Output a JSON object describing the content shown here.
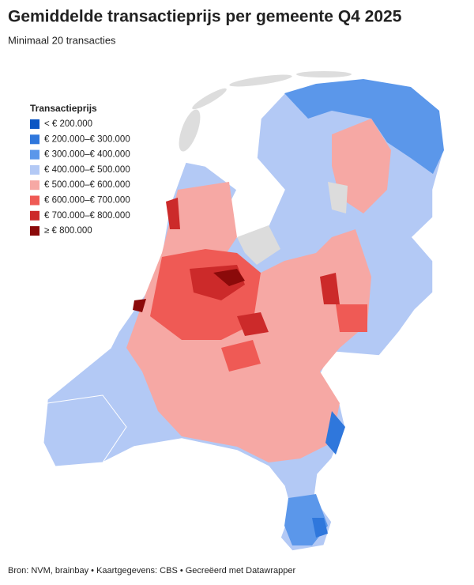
{
  "header": {
    "title": "Gemiddelde transactieprijs per gemeente Q4 2025",
    "subtitle": "Minimaal 20 transacties"
  },
  "legend": {
    "title": "Transactieprijs",
    "items": [
      {
        "label": "< € 200.000",
        "color": "#0b56c4"
      },
      {
        "label": "€ 200.000–€ 300.000",
        "color": "#2f77dc"
      },
      {
        "label": "€ 300.000–€ 400.000",
        "color": "#5b97ea"
      },
      {
        "label": "€ 400.000–€ 500.000",
        "color": "#b3c9f5"
      },
      {
        "label": "€ 500.000–€ 600.000",
        "color": "#f6a8a4"
      },
      {
        "label": "€ 600.000–€ 700.000",
        "color": "#ef5a55"
      },
      {
        "label": "€ 700.000–€ 800.000",
        "color": "#cc2a2a"
      },
      {
        "label": "≥ € 800.000",
        "color": "#8b0a0a"
      }
    ]
  },
  "footer": {
    "source": "Bron: NVM, brainbay • Kaartgegevens: CBS • Gecreëerd met Datawrapper"
  }
}
